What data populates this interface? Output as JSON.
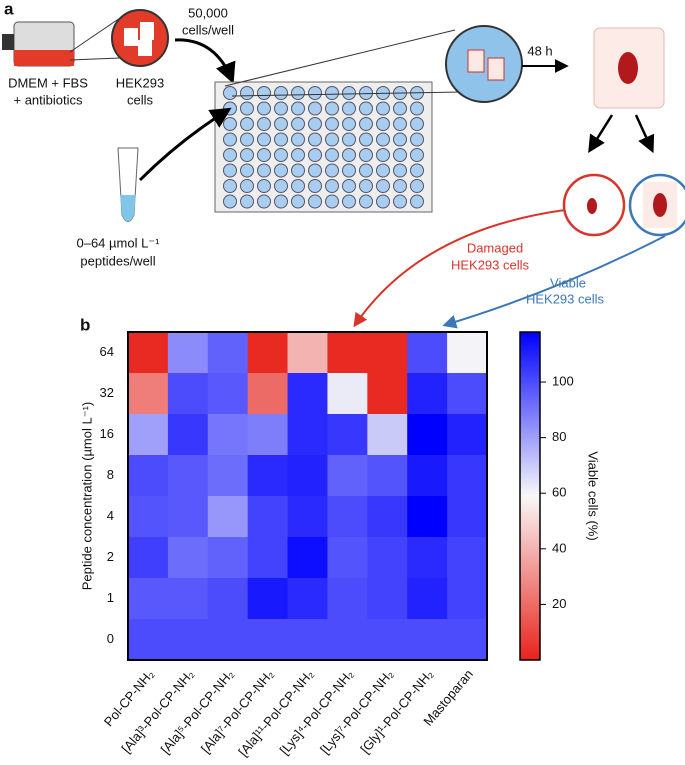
{
  "panel_a": {
    "label": "a",
    "medium": [
      "DMEM + FBS",
      "+ antibiotics"
    ],
    "cells": [
      "HEK293",
      "cells"
    ],
    "seeding": [
      "50,000",
      "cells/well"
    ],
    "peptides": [
      "0–64 µmol L⁻¹",
      "peptides/well"
    ],
    "incubation": "48 h",
    "damaged": [
      "Damaged",
      "HEK293 cells"
    ],
    "viable": [
      "Viable",
      "HEK293 cells"
    ]
  },
  "chart_data": {
    "type": "heatmap",
    "panel_label": "b",
    "y_label": "Peptide concentration (µmol L⁻¹)",
    "colorbar_label": "Viable cells (%)",
    "x_categories": [
      "Pol-CP-NH₂",
      "[Ala]³-Pol-CP-NH₂",
      "[Ala]⁵-Pol-CP-NH₂",
      "[Ala]⁷-Pol-CP-NH₂",
      "[Ala]¹¹-Pol-CP-NH₂",
      "[Lys]⁴-Pol-CP-NH₂",
      "[Lys]⁷-Pol-CP-NH₂",
      "[Gly]¹-Pol-CP-NH₂",
      "Mastoparan"
    ],
    "y_categories": [
      "64",
      "32",
      "16",
      "8",
      "4",
      "2",
      "1",
      "0"
    ],
    "z": [
      [
        2,
        85,
        95,
        2,
        40,
        2,
        2,
        100,
        60
      ],
      [
        25,
        100,
        97,
        20,
        108,
        62,
        2,
        110,
        100
      ],
      [
        80,
        105,
        90,
        88,
        108,
        105,
        70,
        118,
        110
      ],
      [
        100,
        97,
        92,
        108,
        110,
        95,
        98,
        112,
        105
      ],
      [
        98,
        97,
        82,
        102,
        108,
        100,
        105,
        118,
        105
      ],
      [
        103,
        92,
        95,
        102,
        115,
        98,
        102,
        108,
        102
      ],
      [
        97,
        97,
        100,
        112,
        108,
        100,
        102,
        110,
        102
      ],
      [
        100,
        100,
        100,
        100,
        100,
        100,
        100,
        100,
        100
      ]
    ],
    "zlim": [
      0,
      118
    ],
    "zticks": [
      20,
      40,
      60,
      80,
      100
    ],
    "colormap": [
      "#e8231c",
      "#f8f8f8",
      "#0000ff"
    ]
  }
}
